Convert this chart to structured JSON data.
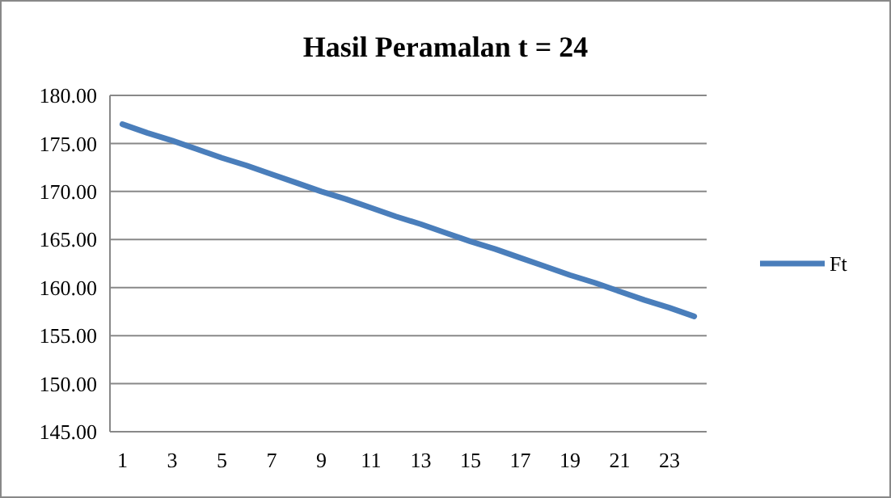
{
  "chart_data": {
    "type": "line",
    "title": "Hasil Peramalan t = 24",
    "x": [
      1,
      2,
      3,
      4,
      5,
      6,
      7,
      8,
      9,
      10,
      11,
      12,
      13,
      14,
      15,
      16,
      17,
      18,
      19,
      20,
      21,
      22,
      23,
      24
    ],
    "xlim": [
      0.5,
      24.5
    ],
    "xticks": [
      1,
      3,
      5,
      7,
      9,
      11,
      13,
      15,
      17,
      19,
      21,
      23
    ],
    "series": [
      {
        "name": "Ft",
        "color": "#4a7ebb",
        "values": [
          177,
          176.1,
          175.3,
          174.4,
          173.5,
          172.7,
          171.8,
          170.9,
          170,
          169.2,
          168.3,
          167.4,
          166.6,
          165.7,
          164.8,
          164,
          163.1,
          162.2,
          161.3,
          160.5,
          159.6,
          158.7,
          157.9,
          157
        ]
      }
    ],
    "ylim": [
      145,
      180
    ],
    "yticks": [
      {
        "value": 145,
        "label": "145.00"
      },
      {
        "value": 150,
        "label": "150.00"
      },
      {
        "value": 155,
        "label": "155.00"
      },
      {
        "value": 160,
        "label": "160.00"
      },
      {
        "value": 165,
        "label": "165.00"
      },
      {
        "value": 170,
        "label": "170.00"
      },
      {
        "value": 175,
        "label": "175.00"
      },
      {
        "value": 180,
        "label": "180.00"
      }
    ],
    "grid": "y",
    "legend": "right",
    "marker": "none",
    "line_style": "solid"
  }
}
